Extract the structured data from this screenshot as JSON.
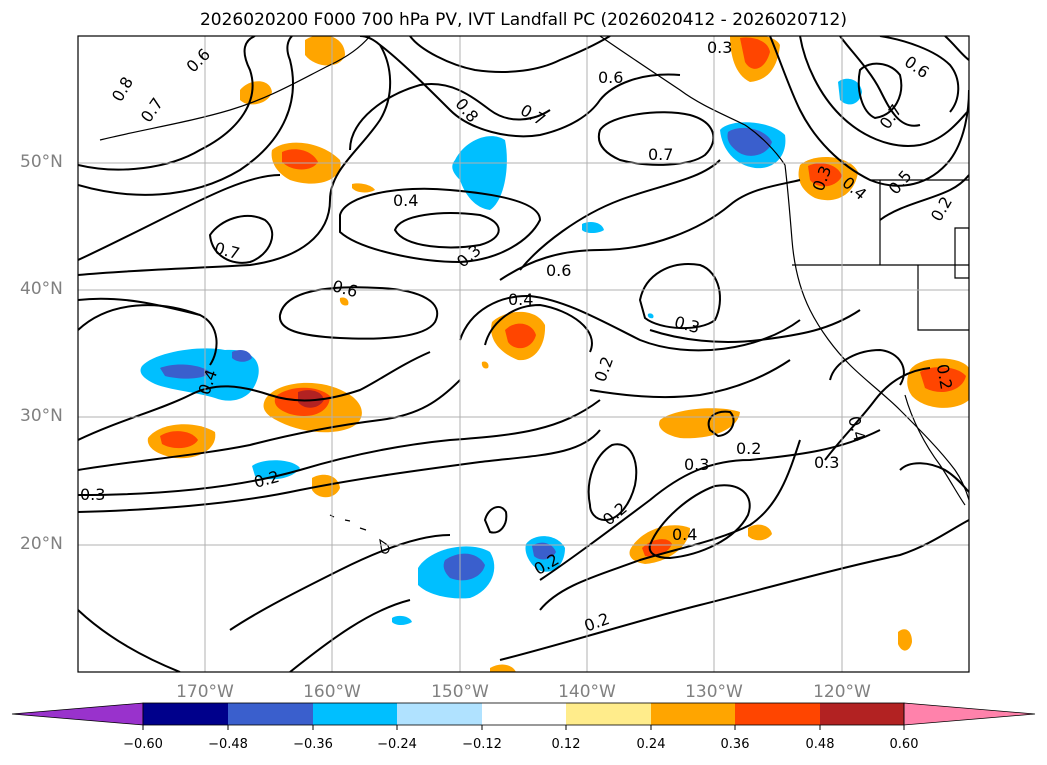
{
  "title": "2026020200 F000 700 hPa PV, IVT Landfall PC (2026020412 - 2026020712)",
  "lat_labels": [
    "50°N",
    "40°N",
    "30°N",
    "20°N"
  ],
  "lon_labels": [
    "170°W",
    "160°W",
    "150°W",
    "140°W",
    "130°W",
    "120°W"
  ],
  "contour_labels": [
    "0.8",
    "0.6",
    "0.7",
    "0.8",
    "0.7",
    "0.6",
    "0.3",
    "0.7",
    "0.6",
    "0.7",
    "0.4",
    "0.3",
    "0.6",
    "0.7",
    "0.6",
    "0.4",
    "0.3",
    "0.2",
    "0.4",
    "0.2",
    "0.3",
    "0.2",
    "0.4",
    "0.2",
    "0.3",
    "0.2",
    "0.2",
    "0.3",
    "0.4",
    "0.2",
    "0.3",
    "0.4",
    "0.5",
    "0.2"
  ],
  "colorbar": {
    "ticks": [
      "−0.60",
      "−0.48",
      "−0.36",
      "−0.24",
      "−0.12",
      "0.12",
      "0.24",
      "0.36",
      "0.48",
      "0.60"
    ],
    "colors": [
      "#9932cc",
      "#00008b",
      "#3a5fcd",
      "#00bfff",
      "#b0e2ff",
      "#ffffff",
      "#ffec8b",
      "#ffa500",
      "#ff4500",
      "#b22222",
      "#ff82ab"
    ]
  },
  "map": {
    "projection": "lat-lon",
    "lon_range": [
      "180°W",
      "110°W"
    ],
    "lat_range": [
      "10°N",
      "60°N"
    ],
    "field_contours": "700 hPa PV",
    "field_shaded": "IVT Landfall PC"
  }
}
